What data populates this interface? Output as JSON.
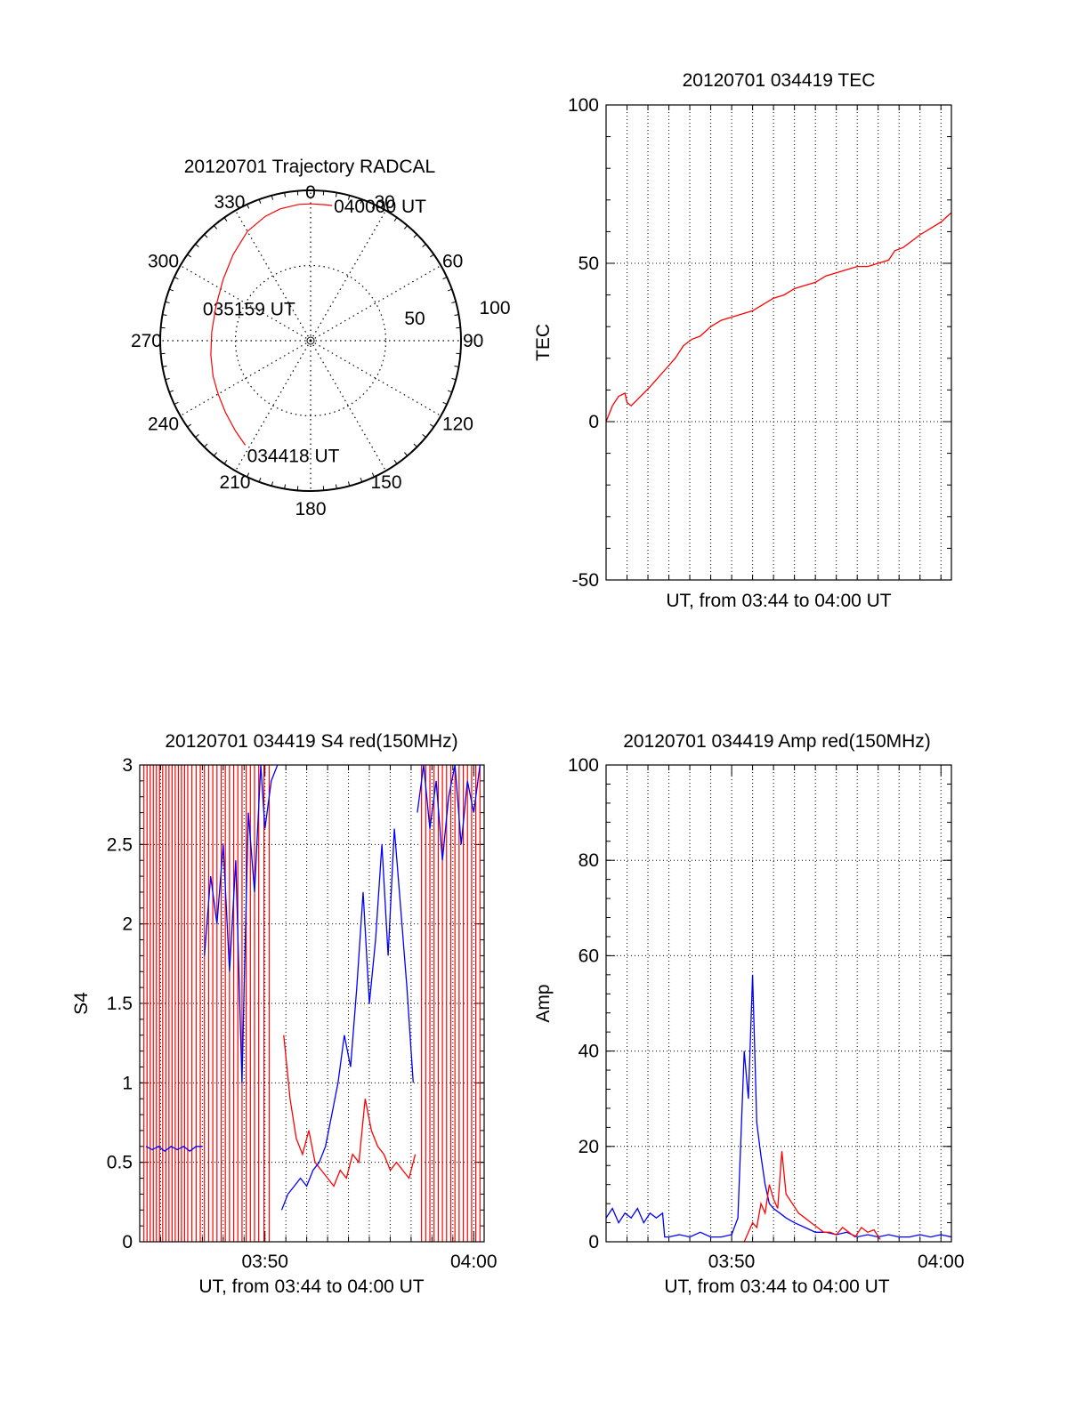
{
  "colors": {
    "red": "#ff0000",
    "blue": "#0000ff",
    "axis": "#000000",
    "grid": "#000000"
  },
  "chart_data": [
    {
      "id": "trajectory",
      "type": "polar",
      "title": "20120701 Trajectory RADCAL",
      "angle_labels": [
        "0",
        "30",
        "60",
        "90",
        "120",
        "150",
        "180",
        "210",
        "240",
        "270",
        "300",
        "330"
      ],
      "radial_labels": [
        "50",
        "100"
      ],
      "radial_ticks": [
        50,
        100
      ],
      "rmax": 100,
      "grid": true,
      "series": [
        {
          "color": "red",
          "points": [
            [
              212,
              82
            ],
            [
              220,
              78
            ],
            [
              230,
              74
            ],
            [
              240,
              71
            ],
            [
              250,
              69
            ],
            [
              262,
              67
            ],
            [
              275,
              66
            ],
            [
              290,
              67
            ],
            [
              305,
              71
            ],
            [
              318,
              77
            ],
            [
              330,
              84
            ],
            [
              340,
              88
            ],
            [
              347,
              90
            ],
            [
              355,
              91
            ],
            [
              360,
              91
            ],
            [
              366,
              91
            ],
            [
              369,
              91
            ]
          ]
        }
      ],
      "annotations": [
        {
          "text": "040000 UT",
          "at": [
            366,
            91
          ]
        },
        {
          "text": "035159 UT",
          "at": [
            275,
            66
          ]
        },
        {
          "text": "034418 UT",
          "at": [
            212,
            82
          ]
        }
      ]
    },
    {
      "id": "tec",
      "type": "line",
      "title": "20120701 034419 TEC",
      "ylabel": "TEC",
      "xlabel": "UT, from 03:44 to 04:00 UT",
      "xlim": [
        0,
        16.5
      ],
      "ylim": [
        -50,
        100
      ],
      "yticks": [
        "-50",
        "0",
        "50",
        "100"
      ],
      "grid": true,
      "series": [
        {
          "color": "red",
          "x": [
            0,
            0.3,
            0.6,
            0.9,
            1.0,
            1.2,
            1.5,
            1.8,
            2.1,
            2.5,
            2.9,
            3.3,
            3.7,
            4.1,
            4.5,
            5.0,
            5.5,
            6.0,
            6.5,
            7.0,
            7.5,
            8.0,
            8.5,
            9.0,
            9.5,
            10.0,
            10.5,
            11.0,
            11.5,
            12.0,
            12.5,
            13.0,
            13.5,
            13.8,
            14.2,
            14.6,
            15.0,
            15.5,
            16.0,
            16.5
          ],
          "y": [
            0,
            5,
            8,
            9,
            6,
            5,
            7,
            9,
            11,
            14,
            17,
            20,
            24,
            26,
            27,
            30,
            32,
            33,
            34,
            35,
            37,
            39,
            40,
            42,
            43,
            44,
            46,
            47,
            48,
            49,
            49,
            50,
            51,
            54,
            55,
            57,
            59,
            61,
            63,
            66
          ]
        }
      ]
    },
    {
      "id": "s4",
      "type": "line",
      "title": "20120701 034419 S4 red(150MHz)",
      "ylabel": "S4",
      "xlabel": "UT, from 03:44 to 04:00 UT",
      "xlim": [
        0,
        16.5
      ],
      "ylim": [
        0,
        3
      ],
      "yticks": [
        "0",
        "0.5",
        "1",
        "1.5",
        "2",
        "2.5",
        "3"
      ],
      "xticks": [
        {
          "x": 6,
          "label": "03:50"
        },
        {
          "x": 16,
          "label": "04:00"
        }
      ],
      "grid": true,
      "series": [
        {
          "color": "red",
          "segments": [
            {
              "x": [
                6.9,
                7.2,
                7.5,
                7.8,
                8.1,
                8.4,
                8.7,
                9.0,
                9.3,
                9.6,
                9.9,
                10.2,
                10.5,
                10.8,
                11.1,
                11.4,
                11.7,
                12.0,
                12.3,
                12.6,
                12.9,
                13.2
              ],
              "y": [
                1.3,
                0.9,
                0.65,
                0.55,
                0.7,
                0.5,
                0.45,
                0.4,
                0.35,
                0.45,
                0.4,
                0.55,
                0.5,
                0.9,
                0.7,
                0.6,
                0.55,
                0.45,
                0.5,
                0.45,
                0.4,
                0.55
              ]
            }
          ],
          "spikes": [
            0.2,
            0.35,
            0.5,
            0.65,
            0.8,
            0.95,
            1.1,
            1.25,
            1.4,
            1.55,
            1.7,
            1.85,
            2.0,
            2.15,
            2.3,
            2.5,
            2.7,
            2.9,
            3.1,
            3.3,
            3.5,
            3.7,
            3.9,
            4.1,
            4.3,
            4.5,
            4.7,
            4.9,
            5.1,
            5.3,
            5.5,
            5.7,
            5.95,
            6.2,
            13.5,
            13.7,
            13.9,
            14.1,
            14.3,
            14.5,
            14.7,
            14.9,
            15.1,
            15.3,
            15.5,
            15.7,
            15.9,
            16.1,
            16.3
          ]
        },
        {
          "color": "blue",
          "segments": [
            {
              "x": [
                0.3,
                0.6,
                0.9,
                1.2,
                1.5,
                1.8,
                2.1,
                2.4,
                2.7,
                3.0
              ],
              "y": [
                0.6,
                0.58,
                0.6,
                0.57,
                0.6,
                0.58,
                0.6,
                0.57,
                0.6,
                0.6
              ]
            },
            {
              "x": [
                3.1,
                3.4,
                3.7,
                4.0,
                4.3,
                4.6,
                4.9,
                5.0,
                5.2,
                5.5,
                5.8,
                6.0,
                6.3,
                6.6
              ],
              "y": [
                1.8,
                2.3,
                2.0,
                2.5,
                1.7,
                2.4,
                1.0,
                1.6,
                2.7,
                2.2,
                3.0,
                2.6,
                2.9,
                3.0
              ]
            },
            {
              "x": [
                6.8,
                7.1,
                7.4,
                7.7,
                8.0,
                8.3,
                8.6,
                8.9,
                9.2,
                9.5,
                9.8,
                10.1,
                10.4,
                10.7,
                11.0,
                11.3,
                11.6,
                11.9,
                12.2,
                12.5,
                12.8,
                13.1
              ],
              "y": [
                0.2,
                0.3,
                0.35,
                0.4,
                0.35,
                0.45,
                0.5,
                0.6,
                0.8,
                1.0,
                1.3,
                1.1,
                1.6,
                2.2,
                1.5,
                1.9,
                2.5,
                1.8,
                2.6,
                2.1,
                1.6,
                1.0
              ]
            },
            {
              "x": [
                13.3,
                13.6,
                13.9,
                14.2,
                14.5,
                14.8,
                15.1,
                15.4,
                15.7,
                16.0,
                16.3
              ],
              "y": [
                2.7,
                3.0,
                2.6,
                2.9,
                2.4,
                2.8,
                3.0,
                2.5,
                2.9,
                2.7,
                3.0
              ]
            }
          ]
        }
      ]
    },
    {
      "id": "amp",
      "type": "line",
      "title": "20120701 034419 Amp red(150MHz)",
      "ylabel": "Amp",
      "xlabel": "UT, from 03:44 to 04:00 UT",
      "xlim": [
        0,
        16.5
      ],
      "ylim": [
        0,
        100
      ],
      "yticks": [
        "0",
        "20",
        "40",
        "60",
        "80",
        "100"
      ],
      "xticks": [
        {
          "x": 6,
          "label": "03:50"
        },
        {
          "x": 16,
          "label": "04:00"
        }
      ],
      "grid": true,
      "series": [
        {
          "color": "blue",
          "x": [
            0,
            0.3,
            0.6,
            0.9,
            1.2,
            1.5,
            1.8,
            2.1,
            2.4,
            2.7,
            2.8,
            3.0,
            3.5,
            4.0,
            4.5,
            5.0,
            5.5,
            6.0,
            6.3,
            6.6,
            6.8,
            7.0,
            7.2,
            7.4,
            7.6,
            7.8,
            8.0,
            8.3,
            8.6,
            9.0,
            9.5,
            10.0,
            10.5,
            11.0,
            11.5,
            12.0,
            12.5,
            13.0,
            13.5,
            14.0,
            14.5,
            15.0,
            15.5,
            16.0,
            16.5
          ],
          "y": [
            5,
            7,
            4,
            6,
            5,
            7,
            4,
            6,
            5,
            6,
            1,
            1,
            1.5,
            1,
            2,
            1,
            1,
            1.5,
            5,
            40,
            30,
            56,
            25,
            18,
            12,
            8,
            7,
            6,
            5,
            4,
            3,
            2,
            2,
            1.5,
            2,
            1,
            1.5,
            1,
            1.5,
            1,
            1,
            1.5,
            1,
            1.5,
            1
          ]
        },
        {
          "color": "red",
          "x": [
            6.6,
            6.8,
            7.0,
            7.2,
            7.4,
            7.6,
            7.8,
            8.0,
            8.2,
            8.4,
            8.6,
            8.9,
            9.2,
            9.5,
            9.8,
            10.1,
            10.4,
            10.7,
            11.0,
            11.3,
            11.6,
            11.9,
            12.2,
            12.5,
            12.8,
            13.1
          ],
          "y": [
            0,
            2,
            4,
            3,
            8,
            6,
            12,
            9,
            7,
            19,
            10,
            8,
            6,
            5,
            4,
            3,
            2,
            2,
            1.5,
            3,
            2,
            1,
            3,
            2,
            2.5,
            0.5
          ]
        }
      ]
    }
  ]
}
